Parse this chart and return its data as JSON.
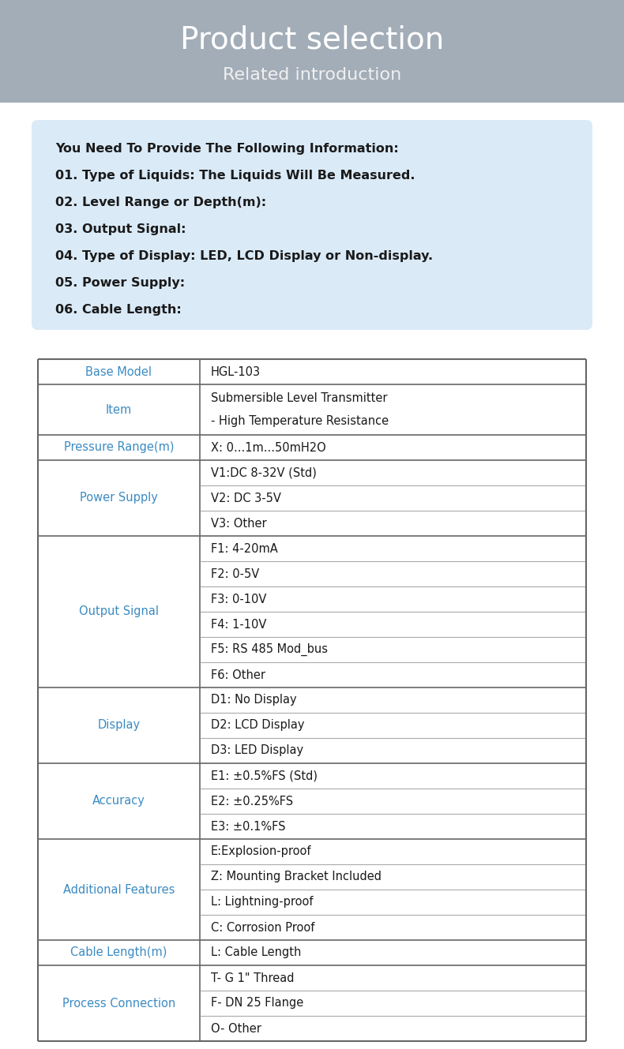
{
  "title": "Product selection",
  "subtitle": "Related introduction",
  "header_bg": "#a2adb8",
  "body_bg": "#ffffff",
  "info_box_bg": "#daeaf7",
  "info_box_border": "#b8d4ea",
  "info_lines": [
    "You Need To Provide The Following Information:",
    "01. Type of Liquids: The Liquids Will Be Measured.",
    "02. Level Range or Depth(m):",
    "03. Output Signal:",
    "04. Type of Display: LED, LCD Display or Non-display.",
    "05. Power Supply:",
    "06. Cable Length:"
  ],
  "table_rows": [
    {
      "left": "Base Model",
      "right": [
        "HGL-103"
      ],
      "merged_left": true
    },
    {
      "left": "Item",
      "right": [
        "Submersible Level Transmitter\n- High Temperature Resistance"
      ],
      "merged_left": true
    },
    {
      "left": "Pressure Range(m)",
      "right": [
        "X: 0...1m...50mH2O"
      ],
      "merged_left": true
    },
    {
      "left": "Power Supply",
      "right": [
        "V1:DC 8-32V (Std)",
        "V2: DC 3-5V",
        "V3: Other"
      ],
      "merged_left": true
    },
    {
      "left": "Output Signal",
      "right": [
        "F1: 4-20mA",
        "F2: 0-5V",
        "F3: 0-10V",
        "F4: 1-10V",
        "F5: RS 485 Mod_bus",
        "F6: Other"
      ],
      "merged_left": true
    },
    {
      "left": "Display",
      "right": [
        "D1: No Display",
        "D2: LCD Display",
        "D3: LED Display"
      ],
      "merged_left": true
    },
    {
      "left": "Accuracy",
      "right": [
        "E1: ±0.5%FS (Std)",
        "E2: ±0.25%FS",
        "E3: ±0.1%FS"
      ],
      "merged_left": true
    },
    {
      "left": "Additional Features",
      "right": [
        "E:Explosion-proof",
        "Z: Mounting Bracket Included",
        "L: Lightning-proof",
        "C: Corrosion Proof"
      ],
      "merged_left": true
    },
    {
      "left": "Cable Length(m)",
      "right": [
        "L: Cable Length"
      ],
      "merged_left": true
    },
    {
      "left": "Process Connection",
      "right": [
        "T- G 1\" Thread",
        "F- DN 25 Flange",
        "O- Other"
      ],
      "merged_left": true
    }
  ],
  "left_col_color": "#3b8bc2",
  "right_col_color": "#1a1a1a",
  "table_border_color": "#666666",
  "table_sub_line_color": "#aaaaaa",
  "title_color": "#ffffff",
  "subtitle_color": "#f0f0f0",
  "info_text_color": "#1a1a1a",
  "fig_width": 7.9,
  "fig_height": 13.29,
  "dpi": 100
}
